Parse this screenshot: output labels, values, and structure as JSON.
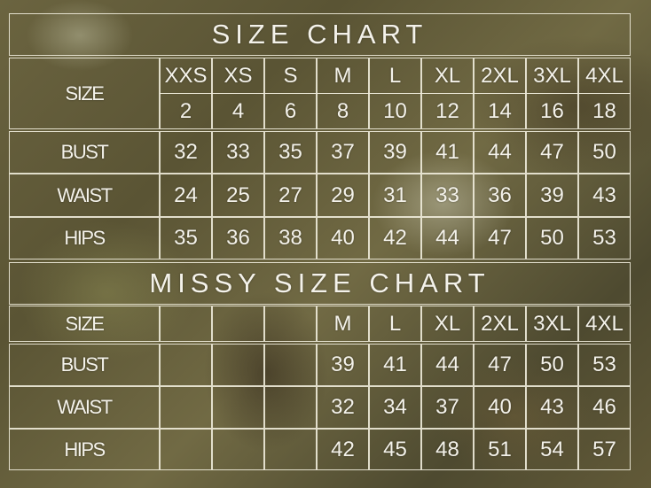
{
  "size_chart": {
    "title": "SIZE CHART",
    "size_label": "SIZE",
    "sizes": [
      "XXS",
      "XS",
      "S",
      "M",
      "L",
      "XL",
      "2XL",
      "3XL",
      "4XL"
    ],
    "numeric_sizes": [
      "2",
      "4",
      "6",
      "8",
      "10",
      "12",
      "14",
      "16",
      "18"
    ],
    "rows": [
      {
        "label": "BUST",
        "values": [
          "32",
          "33",
          "35",
          "37",
          "39",
          "41",
          "44",
          "47",
          "50"
        ]
      },
      {
        "label": "WAIST",
        "values": [
          "24",
          "25",
          "27",
          "29",
          "31",
          "33",
          "36",
          "39",
          "43"
        ]
      },
      {
        "label": "HIPS",
        "values": [
          "35",
          "36",
          "38",
          "40",
          "42",
          "44",
          "47",
          "50",
          "53"
        ]
      }
    ]
  },
  "missy_size_chart": {
    "title": "MISSY SIZE CHART",
    "size_label": "SIZE",
    "sizes": [
      "",
      "",
      "",
      "M",
      "L",
      "XL",
      "2XL",
      "3XL",
      "4XL"
    ],
    "rows": [
      {
        "label": "BUST",
        "values": [
          "",
          "",
          "",
          "39",
          "41",
          "44",
          "47",
          "50",
          "53"
        ]
      },
      {
        "label": "WAIST",
        "values": [
          "",
          "",
          "",
          "32",
          "34",
          "37",
          "40",
          "43",
          "46"
        ]
      },
      {
        "label": "HIPS",
        "values": [
          "",
          "",
          "",
          "42",
          "45",
          "48",
          "51",
          "54",
          "57"
        ]
      }
    ]
  }
}
